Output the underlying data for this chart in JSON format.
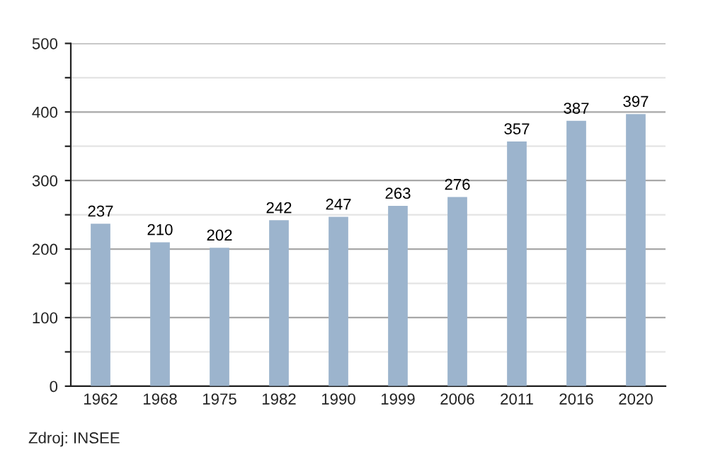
{
  "chart_data": {
    "type": "bar",
    "categories": [
      "1962",
      "1968",
      "1975",
      "1982",
      "1990",
      "1999",
      "2006",
      "2011",
      "2016",
      "2020"
    ],
    "values": [
      237,
      210,
      202,
      242,
      247,
      263,
      276,
      357,
      387,
      397
    ],
    "color": "#9cb4cd",
    "data_labels": true,
    "grid": "y",
    "ylim": [
      0,
      500
    ],
    "yticks": [
      0,
      {
        "value": 50,
        "label": null
      },
      100,
      {
        "value": 150,
        "label": null
      },
      200,
      {
        "value": 250,
        "label": null
      },
      300,
      {
        "value": 350,
        "label": null
      },
      400,
      {
        "value": 450,
        "label": null
      },
      500
    ],
    "annotations": [
      "Zdroj: INSEE"
    ]
  }
}
